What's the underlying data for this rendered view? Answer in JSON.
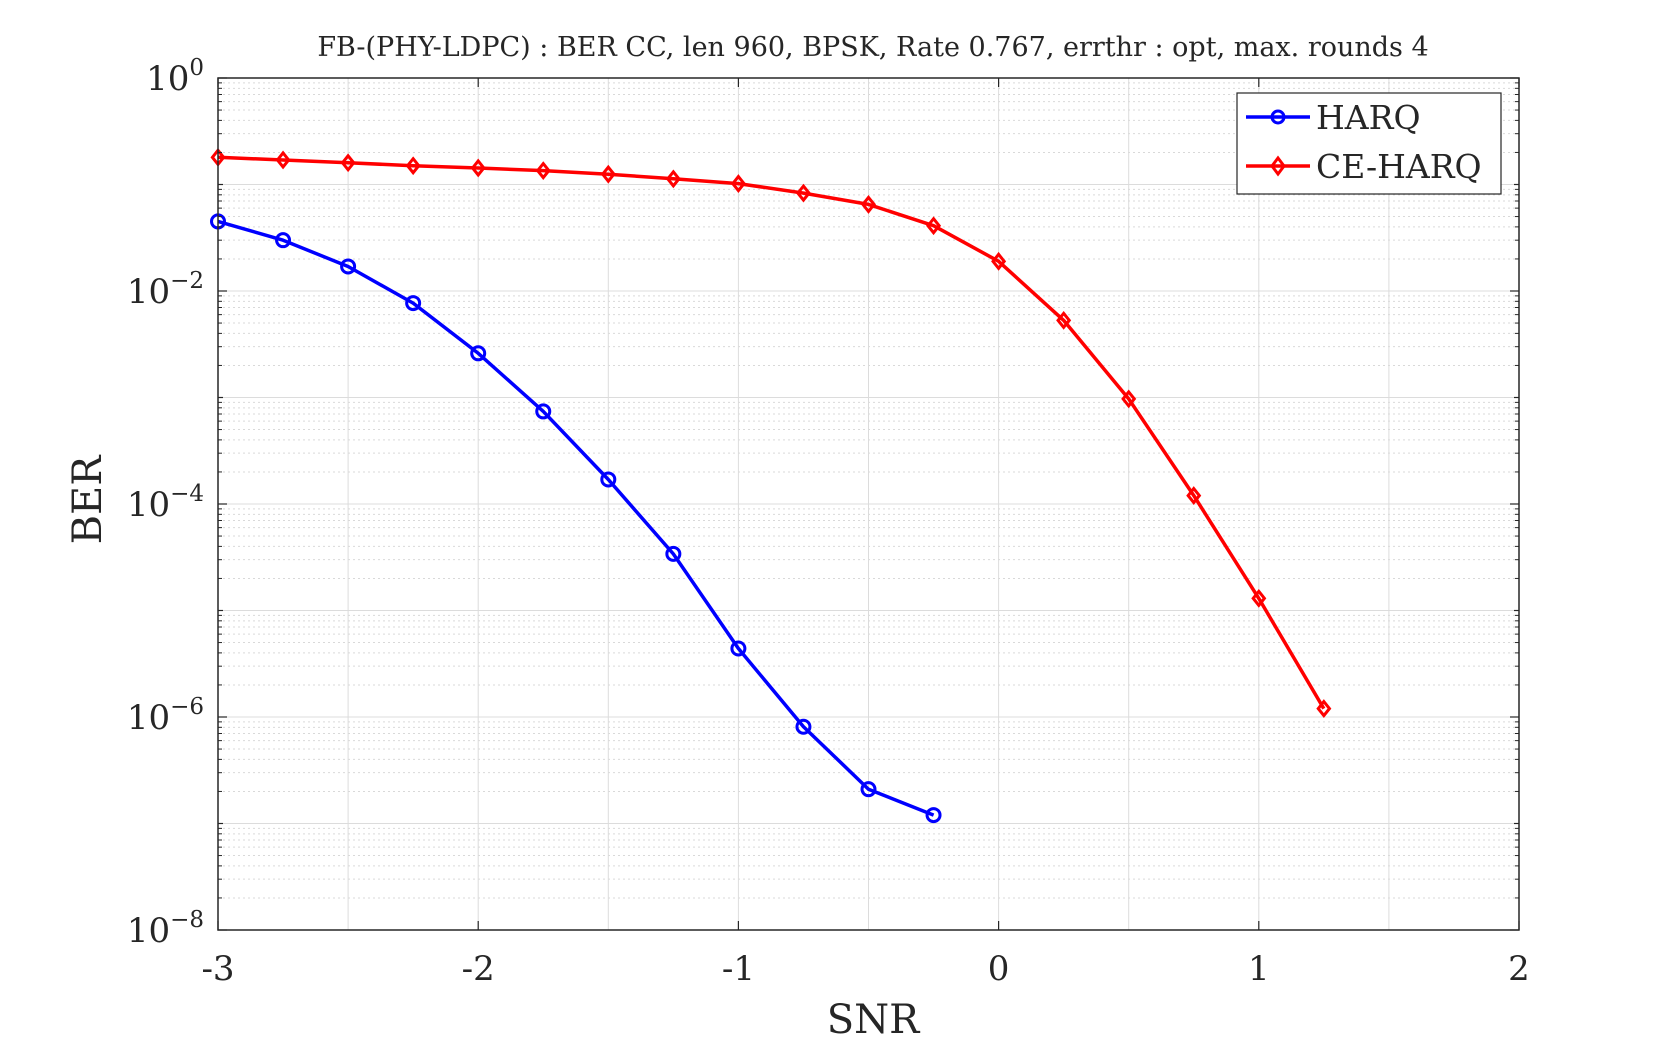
{
  "chart_data": {
    "type": "line",
    "title": "FB-(PHY-LDPC) : BER CC, len 960, BPSK, Rate 0.767, errthr : opt, max. rounds 4",
    "xlabel": "SNR",
    "ylabel": "BER",
    "xlim": [
      -3,
      2
    ],
    "ylim": [
      1e-08,
      1
    ],
    "yscale": "log",
    "grid": true,
    "minor_grid": true,
    "legend_position": "top-right",
    "x_ticks": [
      "-3",
      "-2",
      "-1",
      "0",
      "1",
      "2"
    ],
    "y_ticks": [
      {
        "base": "10",
        "exp": "0"
      },
      {
        "base": "10",
        "exp": "−2"
      },
      {
        "base": "10",
        "exp": "−4"
      },
      {
        "base": "10",
        "exp": "−6"
      },
      {
        "base": "10",
        "exp": "−8"
      }
    ],
    "series": [
      {
        "name": "HARQ",
        "color": "#0000ff",
        "marker": "circle",
        "x": [
          -3,
          -2.75,
          -2.5,
          -2.25,
          -2,
          -1.75,
          -1.5,
          -1.25,
          -1,
          -0.75,
          -0.5,
          -0.25
        ],
        "y": [
          0.045,
          0.03,
          0.017,
          0.0077,
          0.0026,
          0.00074,
          0.00017,
          3.4e-05,
          4.4e-06,
          8.1e-07,
          2.1e-07,
          1.2e-07
        ]
      },
      {
        "name": "CE-HARQ",
        "color": "#ff0000",
        "marker": "diamond",
        "x": [
          -3,
          -2.75,
          -2.5,
          -2.25,
          -2,
          -1.75,
          -1.5,
          -1.25,
          -1,
          -0.75,
          -0.5,
          -0.25,
          0,
          0.25,
          0.5,
          0.75,
          1,
          1.25
        ],
        "y": [
          0.18,
          0.17,
          0.16,
          0.15,
          0.143,
          0.135,
          0.125,
          0.113,
          0.102,
          0.083,
          0.065,
          0.041,
          0.019,
          0.0053,
          0.00097,
          0.00012,
          1.3e-05,
          1.2e-06
        ]
      }
    ]
  }
}
